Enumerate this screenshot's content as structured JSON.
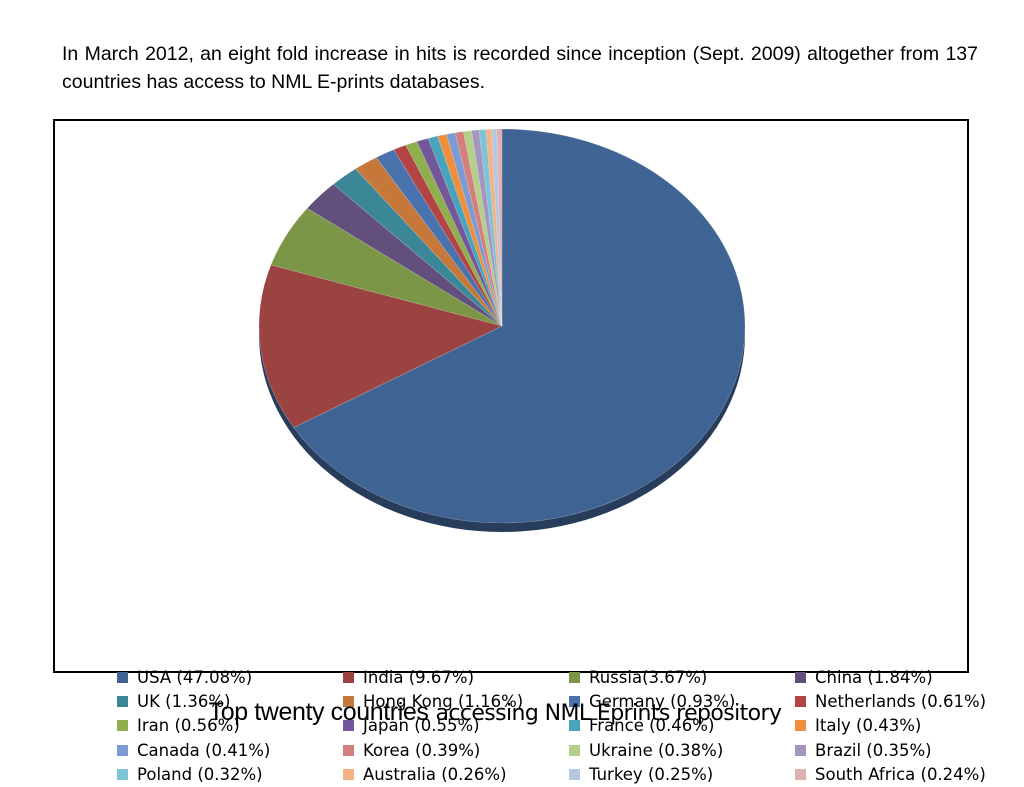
{
  "intro_text": "In March 2012, an eight fold increase in hits is recorded since inception (Sept. 2009) altogether from 137 countries has access to NML E-prints databases.",
  "caption": {
    "part1": "Top twenty countries",
    "part2": "accessing NML Eprints repository"
  },
  "chart_data": {
    "type": "pie",
    "title": "",
    "style": "3d",
    "legend_position": "bottom",
    "slices": [
      {
        "label": "USA (47.08%)",
        "country": "USA",
        "value": 47.08,
        "color": "#3F6392"
      },
      {
        "label": "India (9.67%)",
        "country": "India",
        "value": 9.67,
        "color": "#9A4341"
      },
      {
        "label": "Russia(3.67%)",
        "country": "Russia",
        "value": 3.67,
        "color": "#7B9647"
      },
      {
        "label": "China (1.84%)",
        "country": "China",
        "value": 1.84,
        "color": "#624F7C"
      },
      {
        "label": "UK (1.36%)",
        "country": "UK",
        "value": 1.36,
        "color": "#3B8798"
      },
      {
        "label": "Hong Kong (1.16%)",
        "country": "Hong Kong",
        "value": 1.16,
        "color": "#C6773A"
      },
      {
        "label": "Germany (0.93%)",
        "country": "Germany",
        "value": 0.93,
        "color": "#4A72AD"
      },
      {
        "label": "Netherlands (0.61%)",
        "country": "Netherlands",
        "value": 0.61,
        "color": "#B24443"
      },
      {
        "label": "Iran (0.56%)",
        "country": "Iran",
        "value": 0.56,
        "color": "#8FAE4E"
      },
      {
        "label": "Japan (0.55%)",
        "country": "Japan",
        "value": 0.55,
        "color": "#74579A"
      },
      {
        "label": "France (0.46%)",
        "country": "France",
        "value": 0.46,
        "color": "#48A3BB"
      },
      {
        "label": "Italy (0.43%)",
        "country": "Italy",
        "value": 0.43,
        "color": "#EE8F3D"
      },
      {
        "label": "Canada (0.41%)",
        "country": "Canada",
        "value": 0.41,
        "color": "#7D9BD3"
      },
      {
        "label": "Korea (0.39%)",
        "country": "Korea",
        "value": 0.39,
        "color": "#D37F7D"
      },
      {
        "label": "Ukraine (0.38%)",
        "country": "Ukraine",
        "value": 0.38,
        "color": "#B3CF8A"
      },
      {
        "label": "Brazil (0.35%)",
        "country": "Brazil",
        "value": 0.35,
        "color": "#A595C1"
      },
      {
        "label": "Poland (0.32%)",
        "country": "Poland",
        "value": 0.32,
        "color": "#7EC3D6"
      },
      {
        "label": "Australia (0.26%)",
        "country": "Australia",
        "value": 0.26,
        "color": "#F5B084"
      },
      {
        "label": "Turkey (0.25%)",
        "country": "Turkey",
        "value": 0.25,
        "color": "#B5C5E2"
      },
      {
        "label": "South Africa (0.24%)",
        "country": "South Africa",
        "value": 0.24,
        "color": "#DDB1B0"
      }
    ]
  }
}
